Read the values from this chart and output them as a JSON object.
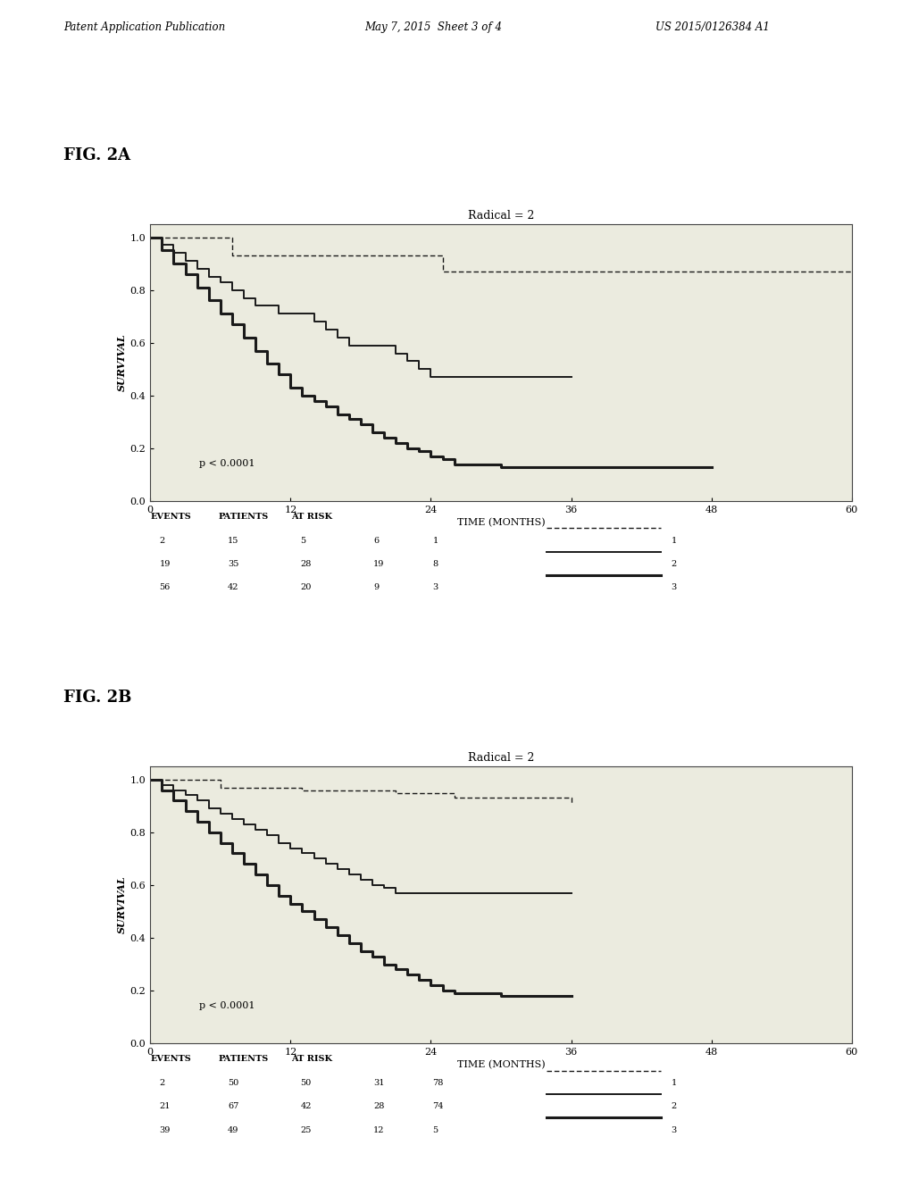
{
  "header_left": "Patent Application Publication",
  "header_mid": "May 7, 2015  Sheet 3 of 4",
  "header_right": "US 2015/0126384 A1",
  "fig2a_label": "FIG. 2A",
  "fig2b_label": "FIG. 2B",
  "plot_title": "Radical = 2",
  "xlabel": "TIME (MONTHS)",
  "ylabel": "SURVIVAL",
  "pvalue_2a": "p < 0.0001",
  "pvalue_2b": "p < 0.0001",
  "xlim": [
    0,
    60
  ],
  "ylim": [
    0.0,
    1.05
  ],
  "xticks": [
    0,
    12,
    24,
    36,
    48,
    60
  ],
  "yticks": [
    0.0,
    0.2,
    0.4,
    0.6,
    0.8,
    1.0
  ],
  "fig2a": {
    "curve1_x": [
      0,
      6,
      7,
      24,
      25,
      30,
      60
    ],
    "curve1_y": [
      1.0,
      1.0,
      0.93,
      0.93,
      0.87,
      0.87,
      0.87
    ],
    "curve2_x": [
      0,
      1,
      2,
      3,
      4,
      5,
      6,
      7,
      8,
      9,
      10,
      11,
      12,
      14,
      15,
      16,
      17,
      18,
      21,
      22,
      23,
      24,
      25,
      36
    ],
    "curve2_y": [
      1.0,
      0.97,
      0.94,
      0.91,
      0.88,
      0.85,
      0.83,
      0.8,
      0.77,
      0.74,
      0.74,
      0.71,
      0.71,
      0.68,
      0.65,
      0.62,
      0.59,
      0.59,
      0.56,
      0.53,
      0.5,
      0.47,
      0.47,
      0.47
    ],
    "curve3_x": [
      0,
      1,
      2,
      3,
      4,
      5,
      6,
      7,
      8,
      9,
      10,
      11,
      12,
      13,
      14,
      15,
      16,
      17,
      18,
      19,
      20,
      21,
      22,
      23,
      24,
      25,
      26,
      30,
      36,
      48
    ],
    "curve3_y": [
      1.0,
      0.95,
      0.9,
      0.86,
      0.81,
      0.76,
      0.71,
      0.67,
      0.62,
      0.57,
      0.52,
      0.48,
      0.43,
      0.4,
      0.38,
      0.36,
      0.33,
      0.31,
      0.29,
      0.26,
      0.24,
      0.22,
      0.2,
      0.19,
      0.17,
      0.16,
      0.14,
      0.13,
      0.13,
      0.13
    ],
    "table_row1": [
      "2",
      "15",
      "5",
      "6",
      "1"
    ],
    "table_row2": [
      "19",
      "35",
      "28",
      "19",
      "8"
    ],
    "table_row3": [
      "56",
      "42",
      "20",
      "9",
      "3"
    ]
  },
  "fig2b": {
    "curve1_x": [
      0,
      5,
      6,
      12,
      13,
      20,
      21,
      25,
      26,
      30,
      36
    ],
    "curve1_y": [
      1.0,
      1.0,
      0.97,
      0.97,
      0.96,
      0.96,
      0.95,
      0.95,
      0.93,
      0.93,
      0.91
    ],
    "curve2_x": [
      0,
      1,
      2,
      3,
      4,
      5,
      6,
      7,
      8,
      9,
      10,
      11,
      12,
      13,
      14,
      15,
      16,
      17,
      18,
      19,
      20,
      21,
      24,
      36
    ],
    "curve2_y": [
      1.0,
      0.98,
      0.96,
      0.94,
      0.92,
      0.89,
      0.87,
      0.85,
      0.83,
      0.81,
      0.79,
      0.76,
      0.74,
      0.72,
      0.7,
      0.68,
      0.66,
      0.64,
      0.62,
      0.6,
      0.59,
      0.57,
      0.57,
      0.57
    ],
    "curve3_x": [
      0,
      1,
      2,
      3,
      4,
      5,
      6,
      7,
      8,
      9,
      10,
      11,
      12,
      13,
      14,
      15,
      16,
      17,
      18,
      19,
      20,
      21,
      22,
      23,
      24,
      25,
      26,
      30,
      36
    ],
    "curve3_y": [
      1.0,
      0.96,
      0.92,
      0.88,
      0.84,
      0.8,
      0.76,
      0.72,
      0.68,
      0.64,
      0.6,
      0.56,
      0.53,
      0.5,
      0.47,
      0.44,
      0.41,
      0.38,
      0.35,
      0.33,
      0.3,
      0.28,
      0.26,
      0.24,
      0.22,
      0.2,
      0.19,
      0.18,
      0.18
    ],
    "table_row1": [
      "2",
      "50",
      "50",
      "31",
      "78"
    ],
    "table_row2": [
      "21",
      "67",
      "42",
      "28",
      "74"
    ],
    "table_row3": [
      "39",
      "49",
      "25",
      "12",
      "5"
    ]
  },
  "bg_color": "#ebebdf",
  "line_color": "#1a1a1a"
}
